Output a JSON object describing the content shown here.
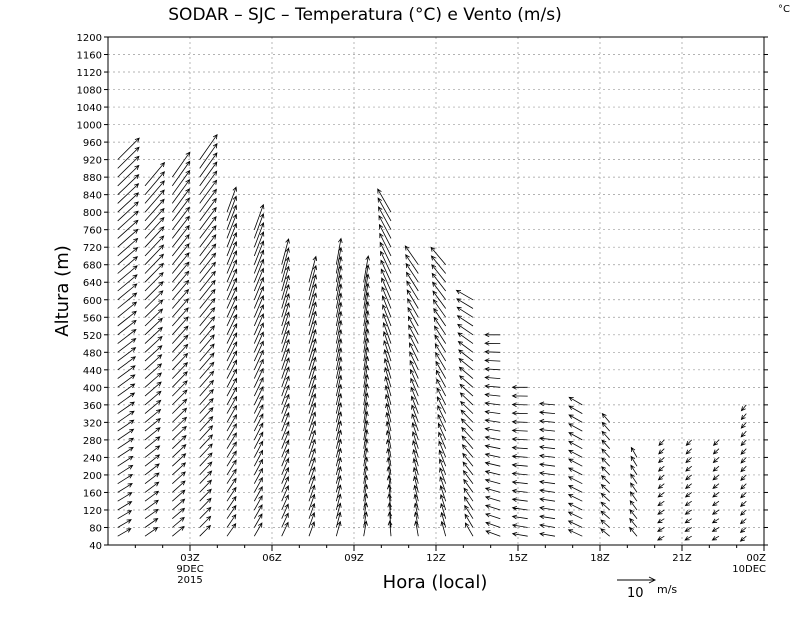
{
  "chart_data": {
    "type": "wind_profile",
    "title": "SODAR – SJC – Temperatura (°C) e Vento (m/s)",
    "corner_label": "°C",
    "xlabel": "Hora (local)",
    "ylabel": "Altura (m)",
    "ylim": [
      40,
      1200
    ],
    "y_ticks": [
      40,
      80,
      120,
      160,
      200,
      240,
      280,
      320,
      360,
      400,
      440,
      480,
      520,
      560,
      600,
      640,
      680,
      720,
      760,
      800,
      840,
      880,
      920,
      960,
      1000,
      1040,
      1080,
      1120,
      1160,
      1200
    ],
    "xlim_hours": [
      0,
      24
    ],
    "x_ticks": [
      {
        "hour": 3,
        "label": "03Z",
        "sub1": "9DEC",
        "sub2": "2015"
      },
      {
        "hour": 6,
        "label": "06Z"
      },
      {
        "hour": 9,
        "label": "09Z"
      },
      {
        "hour": 12,
        "label": "12Z"
      },
      {
        "hour": 15,
        "label": "15Z"
      },
      {
        "hour": 18,
        "label": "18Z"
      },
      {
        "hour": 21,
        "label": "21Z"
      },
      {
        "hour": 24,
        "label": "00Z",
        "sub1": "10DEC"
      }
    ],
    "grid": true,
    "scale_vector": {
      "value": 10,
      "value_label": "10",
      "unit": "m/s"
    },
    "profiles": [
      {
        "hour": 0.5,
        "top": 920,
        "dir_low": 240,
        "dir_high": 225,
        "speed_low": 4,
        "speed_high": 8
      },
      {
        "hour": 1.5,
        "top": 860,
        "dir_low": 235,
        "dir_high": 220,
        "speed_low": 4,
        "speed_high": 8
      },
      {
        "hour": 2.5,
        "top": 880,
        "dir_low": 230,
        "dir_high": 215,
        "speed_low": 4,
        "speed_high": 8
      },
      {
        "hour": 3.5,
        "top": 920,
        "dir_low": 225,
        "dir_high": 215,
        "speed_low": 4,
        "speed_high": 8
      },
      {
        "hour": 4.5,
        "top": 800,
        "dir_low": 215,
        "dir_high": 200,
        "speed_low": 4,
        "speed_high": 7
      },
      {
        "hour": 5.5,
        "top": 760,
        "dir_low": 210,
        "dir_high": 200,
        "speed_low": 4,
        "speed_high": 7
      },
      {
        "hour": 6.5,
        "top": 680,
        "dir_low": 205,
        "dir_high": 195,
        "speed_low": 4,
        "speed_high": 7
      },
      {
        "hour": 7.5,
        "top": 640,
        "dir_low": 200,
        "dir_high": 195,
        "speed_low": 4,
        "speed_high": 7
      },
      {
        "hour": 8.5,
        "top": 680,
        "dir_low": 195,
        "dir_high": 190,
        "speed_low": 4,
        "speed_high": 7
      },
      {
        "hour": 9.5,
        "top": 640,
        "dir_low": 190,
        "dir_high": 190,
        "speed_low": 4,
        "speed_high": 7
      },
      {
        "hour": 10.5,
        "top": 800,
        "dir_low": 175,
        "dir_high": 150,
        "speed_low": 4,
        "speed_high": 7
      },
      {
        "hour": 11.5,
        "top": 680,
        "dir_low": 170,
        "dir_high": 145,
        "speed_low": 4,
        "speed_high": 6
      },
      {
        "hour": 12.5,
        "top": 680,
        "dir_low": 165,
        "dir_high": 140,
        "speed_low": 4,
        "speed_high": 6
      },
      {
        "hour": 13.5,
        "top": 600,
        "dir_low": 150,
        "dir_high": 120,
        "speed_low": 4,
        "speed_high": 5
      },
      {
        "hour": 14.5,
        "top": 520,
        "dir_low": 110,
        "dir_high": 90,
        "speed_low": 4,
        "speed_high": 4
      },
      {
        "hour": 15.5,
        "top": 400,
        "dir_low": 100,
        "dir_high": 90,
        "speed_low": 4,
        "speed_high": 4
      },
      {
        "hour": 16.5,
        "top": 360,
        "dir_low": 100,
        "dir_high": 95,
        "speed_low": 4,
        "speed_high": 4
      },
      {
        "hour": 17.5,
        "top": 360,
        "dir_low": 115,
        "dir_high": 120,
        "speed_low": 4,
        "speed_high": 4
      },
      {
        "hour": 18.5,
        "top": 320,
        "dir_low": 130,
        "dir_high": 140,
        "speed_low": 3,
        "speed_high": 3
      },
      {
        "hour": 19.5,
        "top": 240,
        "dir_low": 140,
        "dir_high": 150,
        "speed_low": 3,
        "speed_high": 3
      },
      {
        "hour": 20.5,
        "top": 280,
        "dir_low": 60,
        "dir_high": 45,
        "speed_low": 2,
        "speed_high": 2
      },
      {
        "hour": 21.5,
        "top": 280,
        "dir_low": 60,
        "dir_high": 45,
        "speed_low": 2,
        "speed_high": 2
      },
      {
        "hour": 22.5,
        "top": 280,
        "dir_low": 60,
        "dir_high": 45,
        "speed_low": 2,
        "speed_high": 2
      },
      {
        "hour": 23.5,
        "top": 360,
        "dir_low": 50,
        "dir_high": 40,
        "speed_low": 2,
        "speed_high": 2
      }
    ]
  }
}
